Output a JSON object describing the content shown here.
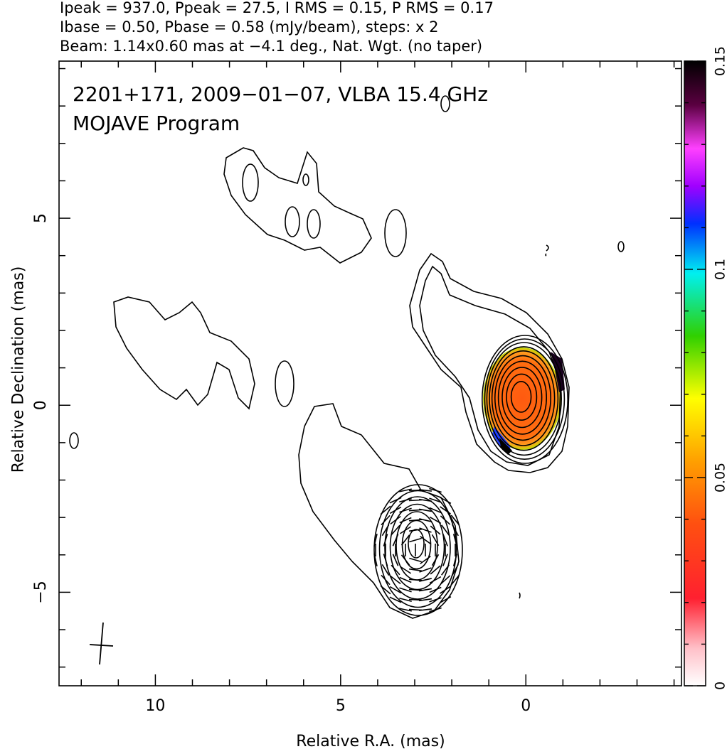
{
  "header": {
    "line1": "Ipeak = 937.0, Ppeak = 27.5, I RMS = 0.15, P RMS = 0.17",
    "line2": "Ibase = 0.50, Pbase = 0.58 (mJy/beam), steps: x 2",
    "line3": "Beam: 1.14x0.60 mas at −4.1 deg., Nat. Wgt. (no taper)"
  },
  "chart_data": {
    "type": "contour",
    "title": "2201+171, 2009−01−07, VLBA 15.4 GHz",
    "subtitle": "MOJAVE Program",
    "xlabel": "Relative R.A. (mas)",
    "ylabel": "Relative Declination (mas)",
    "xlim": [
      12.6,
      -4.2
    ],
    "ylim": [
      -7.5,
      9.2
    ],
    "x_ticks": [
      10,
      5,
      0
    ],
    "x_tick_labels": [
      "10",
      "5",
      "0"
    ],
    "y_ticks": [
      5,
      0,
      -5
    ],
    "y_tick_labels": [
      "5",
      "0",
      "−5"
    ],
    "colorbar": {
      "min": 0,
      "max": 0.15,
      "ticks": [
        0,
        0.05,
        0.1,
        0.15
      ],
      "tick_labels": [
        "0",
        "0.05",
        "0.1",
        "0.15"
      ]
    },
    "core": {
      "x": 0,
      "y": 0.1,
      "contour_levels": 10
    },
    "jet_component": {
      "x": 3.0,
      "y": -3.8,
      "contour_levels": 6
    },
    "beam": {
      "major_mas": 1.14,
      "minor_mas": 0.6,
      "pa_deg": -4.1,
      "x": 11.6,
      "y": -6.4
    }
  },
  "colors": {
    "axis": "#000000",
    "contour": "#000000",
    "polarization_fill": "#ff6a10"
  }
}
